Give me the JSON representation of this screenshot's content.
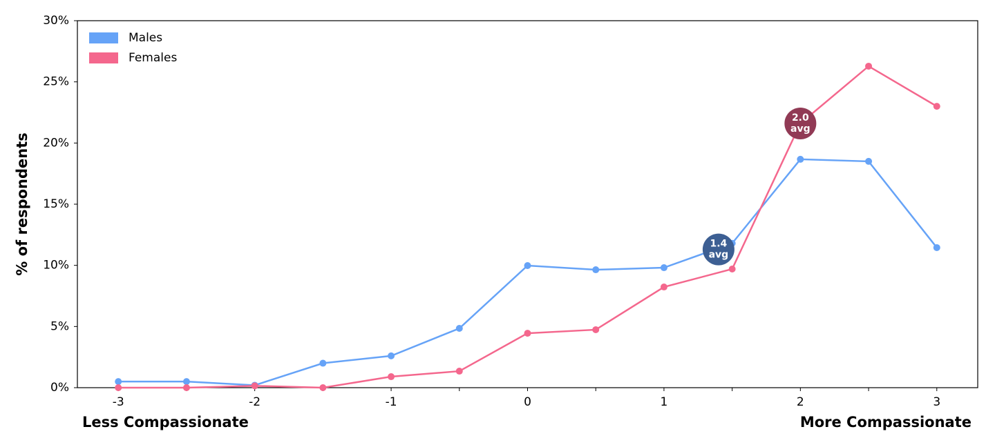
{
  "chart_data": {
    "type": "line",
    "ylabel": "% of respondents",
    "xlabel_left": "Less Compassionate",
    "xlabel_right": "More Compassionate",
    "x": [
      -3,
      -2.5,
      -2,
      -1.5,
      -1,
      -0.5,
      0,
      0.5,
      1,
      1.5,
      2,
      2.5,
      3
    ],
    "series": [
      {
        "name": "Males",
        "color": "#66a3f7",
        "values": [
          0.5,
          0.5,
          0.2,
          2.0,
          2.6,
          4.85,
          9.98,
          9.64,
          9.81,
          11.8,
          18.67,
          18.5,
          11.45
        ]
      },
      {
        "name": "Females",
        "color": "#f4678d",
        "values": [
          0,
          0,
          0.15,
          0,
          0.9,
          1.35,
          4.45,
          4.74,
          8.23,
          9.7,
          21.6,
          26.28,
          23.0
        ]
      }
    ],
    "annotations": [
      {
        "x": 1.4,
        "y": 11.3,
        "label": "1.4",
        "sublabel": "avg",
        "color": "#3d5f93"
      },
      {
        "x": 2.0,
        "y": 21.6,
        "label": "2.0",
        "sublabel": "avg",
        "color": "#913a55"
      }
    ],
    "xlim": [
      -3.3,
      3.3
    ],
    "ylim": [
      0,
      30
    ],
    "xticks": [
      -3,
      -2,
      -1,
      0,
      1,
      2,
      3
    ],
    "xminor_ticks": [
      -2.5,
      -1.5,
      -0.5,
      0.5,
      1.5,
      2.5
    ],
    "yticks": [
      {
        "value": 0,
        "label": "0%"
      },
      {
        "value": 5,
        "label": "5%"
      },
      {
        "value": 10,
        "label": "10%"
      },
      {
        "value": 15,
        "label": "15%"
      },
      {
        "value": 20,
        "label": "20%"
      },
      {
        "value": 25,
        "label": "25%"
      },
      {
        "value": 30,
        "label": "30%"
      }
    ],
    "legend": "upper left"
  }
}
